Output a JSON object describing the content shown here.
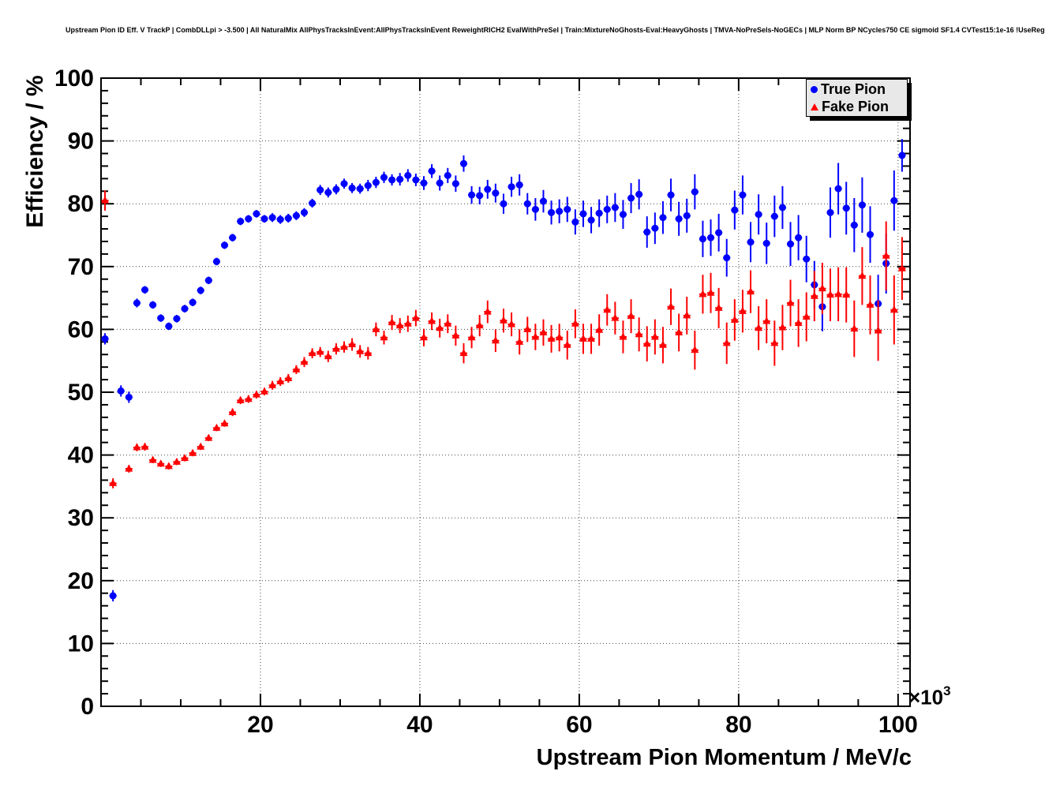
{
  "chart_data": {
    "type": "scatter",
    "title": "Upstream Pion ID Eff. V TrackP | CombDLLpi > -3.500 | All NaturalMix AllPhysTracksInEvent:AllPhysTracksInEvent ReweightRICH2 EvalWithPreSel | Train:MixtureNoGhosts-Eval:HeavyGhosts | TMVA-NoPreSels-NoGECs | MLP Norm BP NCycles750 CE sigmoid SF1.4 CVTest15:1e-16 !UseReg",
    "xlabel": "Upstream Pion Momentum / MeV/c",
    "ylabel": "Efficiency / %",
    "x_multiplier": {
      "base": "×10",
      "exp": "3"
    },
    "xlim": [
      0,
      101.5
    ],
    "ylim": [
      0,
      100
    ],
    "xticks": [
      20,
      40,
      60,
      80,
      100
    ],
    "yticks": [
      0,
      10,
      20,
      30,
      40,
      50,
      60,
      70,
      80,
      90,
      100
    ],
    "x_minor_tick_step": 5,
    "y_minor_tick_step": 2,
    "grid": true,
    "grid_style": "dotted",
    "background_color": "#ffffff",
    "frame_color": "#000000",
    "legend": {
      "position": "top-right",
      "fill": "#e8e8e8",
      "border_color": "#000000",
      "shadow_color": "#000000",
      "entries": [
        {
          "label": "True Pion",
          "marker": "circle",
          "color": "#0000ff"
        },
        {
          "label": "Fake Pion",
          "marker": "triangle",
          "color": "#ff0000"
        }
      ]
    },
    "x_unit": "MeV/c (axis values ×10³)",
    "series": [
      {
        "name": "True Pion",
        "marker": "circle",
        "color": "#0000ff",
        "points": [
          [
            0.5,
            58.5,
            0.9
          ],
          [
            1.5,
            17.6,
            0.9
          ],
          [
            2.5,
            50.2,
            0.9
          ],
          [
            3.5,
            49.2,
            0.9
          ],
          [
            4.5,
            64.2,
            0.7
          ],
          [
            5.5,
            66.3,
            0.6
          ],
          [
            6.5,
            63.9,
            0.6
          ],
          [
            7.5,
            61.8,
            0.6
          ],
          [
            8.5,
            60.5,
            0.6
          ],
          [
            9.5,
            61.7,
            0.6
          ],
          [
            10.5,
            63.3,
            0.6
          ],
          [
            11.5,
            64.3,
            0.6
          ],
          [
            12.5,
            66.2,
            0.6
          ],
          [
            13.5,
            67.8,
            0.6
          ],
          [
            14.5,
            70.8,
            0.6
          ],
          [
            15.5,
            73.4,
            0.6
          ],
          [
            16.5,
            74.6,
            0.6
          ],
          [
            17.5,
            77.2,
            0.6
          ],
          [
            18.5,
            77.6,
            0.6
          ],
          [
            19.5,
            78.4,
            0.6
          ],
          [
            20.5,
            77.6,
            0.6
          ],
          [
            21.5,
            77.8,
            0.7
          ],
          [
            22.5,
            77.5,
            0.7
          ],
          [
            23.5,
            77.7,
            0.7
          ],
          [
            24.5,
            78.1,
            0.7
          ],
          [
            25.5,
            78.6,
            0.7
          ],
          [
            26.5,
            80.1,
            0.7
          ],
          [
            27.5,
            82.2,
            0.8
          ],
          [
            28.5,
            81.8,
            0.8
          ],
          [
            29.5,
            82.3,
            0.8
          ],
          [
            30.5,
            83.2,
            0.8
          ],
          [
            31.5,
            82.5,
            0.8
          ],
          [
            32.5,
            82.4,
            0.8
          ],
          [
            33.5,
            82.9,
            0.9
          ],
          [
            34.5,
            83.4,
            0.9
          ],
          [
            35.5,
            84.2,
            0.9
          ],
          [
            36.5,
            83.8,
            0.9
          ],
          [
            37.5,
            83.9,
            1.0
          ],
          [
            38.5,
            84.5,
            1.0
          ],
          [
            39.5,
            83.8,
            1.0
          ],
          [
            40.5,
            83.3,
            1.1
          ],
          [
            41.5,
            85.2,
            1.1
          ],
          [
            42.5,
            83.3,
            1.2
          ],
          [
            43.5,
            84.5,
            1.2
          ],
          [
            44.5,
            83.2,
            1.3
          ],
          [
            45.5,
            86.4,
            1.3
          ],
          [
            46.5,
            81.4,
            1.4
          ],
          [
            47.5,
            81.3,
            1.4
          ],
          [
            48.5,
            82.3,
            1.5
          ],
          [
            49.5,
            81.7,
            1.5
          ],
          [
            50.5,
            80.0,
            1.6
          ],
          [
            51.5,
            82.7,
            1.6
          ],
          [
            52.5,
            83.0,
            1.7
          ],
          [
            53.5,
            80.0,
            1.7
          ],
          [
            54.5,
            79.1,
            1.8
          ],
          [
            55.5,
            80.4,
            1.8
          ],
          [
            56.5,
            78.6,
            1.9
          ],
          [
            57.5,
            78.8,
            1.9
          ],
          [
            58.5,
            79.1,
            2.0
          ],
          [
            59.5,
            77.1,
            2.0
          ],
          [
            60.5,
            78.4,
            2.1
          ],
          [
            61.5,
            77.4,
            2.1
          ],
          [
            62.5,
            78.5,
            2.2
          ],
          [
            63.5,
            79.1,
            2.2
          ],
          [
            64.5,
            79.4,
            2.3
          ],
          [
            65.5,
            78.3,
            2.3
          ],
          [
            66.5,
            80.9,
            2.4
          ],
          [
            67.5,
            81.5,
            2.4
          ],
          [
            68.5,
            75.5,
            2.5
          ],
          [
            69.5,
            76.1,
            2.5
          ],
          [
            70.5,
            77.8,
            2.6
          ],
          [
            71.5,
            81.4,
            2.6
          ],
          [
            72.5,
            77.6,
            2.7
          ],
          [
            73.5,
            78.1,
            2.7
          ],
          [
            74.5,
            81.9,
            2.8
          ],
          [
            75.5,
            74.4,
            2.9
          ],
          [
            76.5,
            74.6,
            2.9
          ],
          [
            77.5,
            75.4,
            3.0
          ],
          [
            78.5,
            71.4,
            3.0
          ],
          [
            79.5,
            79.0,
            3.1
          ],
          [
            80.5,
            81.4,
            3.1
          ],
          [
            81.5,
            73.9,
            3.2
          ],
          [
            82.5,
            78.3,
            3.2
          ],
          [
            83.5,
            73.7,
            3.3
          ],
          [
            84.5,
            78.0,
            3.3
          ],
          [
            85.5,
            79.4,
            3.4
          ],
          [
            86.5,
            73.6,
            3.5
          ],
          [
            87.5,
            74.6,
            3.6
          ],
          [
            88.5,
            71.2,
            3.7
          ],
          [
            89.5,
            67.1,
            3.8
          ],
          [
            90.5,
            63.6,
            3.9
          ],
          [
            91.5,
            78.6,
            4.0
          ],
          [
            92.5,
            82.4,
            4.1
          ],
          [
            93.5,
            79.3,
            4.2
          ],
          [
            94.5,
            76.6,
            4.3
          ],
          [
            95.5,
            79.8,
            4.4
          ],
          [
            96.5,
            75.1,
            4.5
          ],
          [
            97.5,
            64.1,
            4.6
          ],
          [
            98.5,
            70.5,
            4.8
          ],
          [
            99.5,
            80.5,
            4.8
          ],
          [
            100.5,
            87.7,
            2.6
          ]
        ]
      },
      {
        "name": "Fake Pion",
        "marker": "triangle",
        "color": "#ff0000",
        "points": [
          [
            0.5,
            80.5,
            1.6
          ],
          [
            1.5,
            35.5,
            0.8
          ],
          [
            3.5,
            37.8,
            0.6
          ],
          [
            4.5,
            41.2,
            0.6
          ],
          [
            5.5,
            41.3,
            0.6
          ],
          [
            6.5,
            39.2,
            0.5
          ],
          [
            7.5,
            38.6,
            0.5
          ],
          [
            8.5,
            38.2,
            0.5
          ],
          [
            9.5,
            38.9,
            0.5
          ],
          [
            10.5,
            39.5,
            0.5
          ],
          [
            11.5,
            40.3,
            0.5
          ],
          [
            12.5,
            41.3,
            0.5
          ],
          [
            13.5,
            42.7,
            0.5
          ],
          [
            14.5,
            44.3,
            0.5
          ],
          [
            15.5,
            45.0,
            0.5
          ],
          [
            16.5,
            46.8,
            0.6
          ],
          [
            17.5,
            48.7,
            0.6
          ],
          [
            18.5,
            48.9,
            0.6
          ],
          [
            19.5,
            49.6,
            0.6
          ],
          [
            20.5,
            50.1,
            0.6
          ],
          [
            21.5,
            51.1,
            0.7
          ],
          [
            22.5,
            51.7,
            0.7
          ],
          [
            23.5,
            52.2,
            0.7
          ],
          [
            24.5,
            53.6,
            0.7
          ],
          [
            25.5,
            54.8,
            0.8
          ],
          [
            26.5,
            56.2,
            0.8
          ],
          [
            27.5,
            56.4,
            0.8
          ],
          [
            28.5,
            55.7,
            0.9
          ],
          [
            29.5,
            56.9,
            0.9
          ],
          [
            30.5,
            57.2,
            0.9
          ],
          [
            31.5,
            57.6,
            1.0
          ],
          [
            32.5,
            56.5,
            1.0
          ],
          [
            33.5,
            56.2,
            1.0
          ],
          [
            34.5,
            60.0,
            1.1
          ],
          [
            35.5,
            58.7,
            1.1
          ],
          [
            36.5,
            61.1,
            1.2
          ],
          [
            37.5,
            60.6,
            1.2
          ],
          [
            38.5,
            60.9,
            1.3
          ],
          [
            39.5,
            61.8,
            1.3
          ],
          [
            40.5,
            58.7,
            1.4
          ],
          [
            41.5,
            61.3,
            1.4
          ],
          [
            42.5,
            60.2,
            1.5
          ],
          [
            43.5,
            60.9,
            1.5
          ],
          [
            44.5,
            59.0,
            1.6
          ],
          [
            45.5,
            56.2,
            1.6
          ],
          [
            46.5,
            58.7,
            1.7
          ],
          [
            47.5,
            60.6,
            1.7
          ],
          [
            48.5,
            62.8,
            1.8
          ],
          [
            49.5,
            58.2,
            1.8
          ],
          [
            50.5,
            61.4,
            1.9
          ],
          [
            51.5,
            60.8,
            1.9
          ],
          [
            52.5,
            58.0,
            2.0
          ],
          [
            53.5,
            60.0,
            2.0
          ],
          [
            54.5,
            58.8,
            2.1
          ],
          [
            55.5,
            59.5,
            2.1
          ],
          [
            56.5,
            58.5,
            2.2
          ],
          [
            57.5,
            58.7,
            2.2
          ],
          [
            58.5,
            57.5,
            2.3
          ],
          [
            59.5,
            60.9,
            2.3
          ],
          [
            60.5,
            58.5,
            2.4
          ],
          [
            61.5,
            58.5,
            2.4
          ],
          [
            62.5,
            59.9,
            2.5
          ],
          [
            63.5,
            63.1,
            2.5
          ],
          [
            64.5,
            61.8,
            2.6
          ],
          [
            65.5,
            58.8,
            2.6
          ],
          [
            66.5,
            62.1,
            2.7
          ],
          [
            67.5,
            59.2,
            2.7
          ],
          [
            68.5,
            57.7,
            2.8
          ],
          [
            69.5,
            58.8,
            2.8
          ],
          [
            70.5,
            57.5,
            2.9
          ],
          [
            71.5,
            63.6,
            2.9
          ],
          [
            72.5,
            59.5,
            3.0
          ],
          [
            73.5,
            62.2,
            3.0
          ],
          [
            74.5,
            56.7,
            3.1
          ],
          [
            75.5,
            65.6,
            3.1
          ],
          [
            76.5,
            65.8,
            3.2
          ],
          [
            77.5,
            63.4,
            3.2
          ],
          [
            78.5,
            57.8,
            3.3
          ],
          [
            79.5,
            61.5,
            3.3
          ],
          [
            80.5,
            62.9,
            3.4
          ],
          [
            81.5,
            66.0,
            3.4
          ],
          [
            82.5,
            60.2,
            3.5
          ],
          [
            83.5,
            61.3,
            3.5
          ],
          [
            84.5,
            57.8,
            3.6
          ],
          [
            85.5,
            60.3,
            3.6
          ],
          [
            86.5,
            64.2,
            3.7
          ],
          [
            87.5,
            61.0,
            3.8
          ],
          [
            88.5,
            62.0,
            3.9
          ],
          [
            89.5,
            65.3,
            4.0
          ],
          [
            90.5,
            66.5,
            4.1
          ],
          [
            91.5,
            65.5,
            4.2
          ],
          [
            92.5,
            65.6,
            4.3
          ],
          [
            93.5,
            65.5,
            4.4
          ],
          [
            94.5,
            60.1,
            4.5
          ],
          [
            95.5,
            68.5,
            4.6
          ],
          [
            96.5,
            63.9,
            4.7
          ],
          [
            97.5,
            59.8,
            4.8
          ],
          [
            98.5,
            71.7,
            5.5
          ],
          [
            99.5,
            63.1,
            5.5
          ],
          [
            100.5,
            69.7,
            5.0
          ]
        ]
      }
    ]
  }
}
